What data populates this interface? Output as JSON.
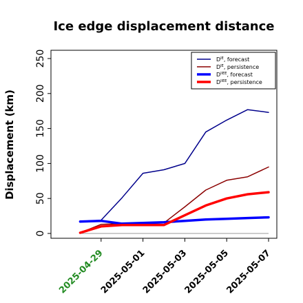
{
  "chart_data": {
    "type": "line",
    "title": "Ice edge displacement distance",
    "xlabel": "",
    "ylabel": "Displacement (km)",
    "x": [
      "2025-04-28",
      "2025-04-29",
      "2025-04-30",
      "2025-05-01",
      "2025-05-02",
      "2025-05-03",
      "2025-05-04",
      "2025-05-05",
      "2025-05-06",
      "2025-05-07"
    ],
    "xlim": [
      "2025-04-27",
      "2025-05-07"
    ],
    "ylim": [
      0,
      260
    ],
    "yticks": [
      0,
      50,
      100,
      150,
      200,
      250
    ],
    "xtick_labels": [
      {
        "date": "2025-04-29",
        "label": "2025-04-29",
        "color": "#228b22"
      },
      {
        "date": "2025-05-01",
        "label": "2025-05-01",
        "color": "#000000"
      },
      {
        "date": "2025-05-03",
        "label": "2025-05-03",
        "color": "#000000"
      },
      {
        "date": "2025-05-05",
        "label": "2025-05-05",
        "color": "#000000"
      },
      {
        "date": "2025-05-07",
        "label": "2025-05-07",
        "color": "#000000"
      }
    ],
    "grid": false,
    "legend_position": "top-right",
    "reference_line": {
      "y": 0,
      "color": "#999999"
    },
    "series": [
      {
        "name": "D^IE, forecast",
        "name_main": "D",
        "name_sup": "IE",
        "name_suffix": ", forecast",
        "color": "#00008b",
        "width": 1.5,
        "values": [
          17,
          19,
          51,
          86,
          91,
          100,
          145,
          162,
          177,
          173
        ]
      },
      {
        "name": "D^IE, persistence",
        "name_main": "D",
        "name_sup": "IE",
        "name_suffix": ", persistence",
        "color": "#8b0000",
        "width": 1.5,
        "values": [
          1,
          13,
          14,
          14,
          15,
          38,
          62,
          76,
          81,
          95
        ]
      },
      {
        "name": "D^IIEE, forecast",
        "name_main": "D",
        "name_sup": "IIEE",
        "name_suffix": ", forecast",
        "color": "#0000ff",
        "width": 3.5,
        "values": [
          17,
          18,
          14,
          15,
          16,
          18,
          20,
          21,
          22,
          23
        ]
      },
      {
        "name": "D^IIEE, persistence",
        "name_main": "D",
        "name_sup": "IIEE",
        "name_suffix": ", persistence",
        "color": "#ff0000",
        "width": 3.5,
        "values": [
          1,
          10,
          12,
          12,
          12,
          26,
          40,
          50,
          56,
          59
        ]
      }
    ]
  }
}
